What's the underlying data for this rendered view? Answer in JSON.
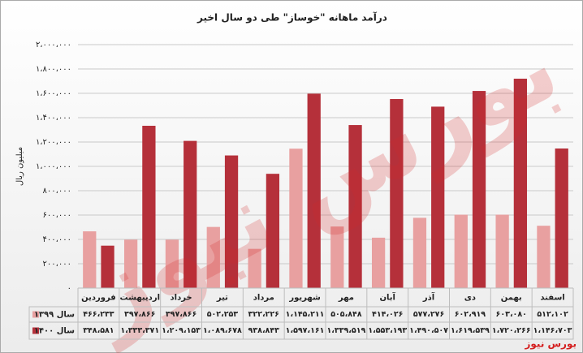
{
  "chart_data": {
    "type": "bar",
    "title": "درآمد ماهانه \"خوساز\" طی دو سال اخیر",
    "y_label": "میلیون ریال",
    "watermark": "بورس نیوز",
    "source": "بورس نیوز",
    "categories": [
      "فروردین",
      "اردیبهشت",
      "خرداد",
      "تیر",
      "مرداد",
      "شهریور",
      "مهر",
      "آبان",
      "آذر",
      "دی",
      "بهمن",
      "اسفند"
    ],
    "series": [
      {
        "name": "سال ۱۳۹۹",
        "color": "#e8a0a0",
        "values": [
          466233,
          397866,
          397866,
          502253,
          322226,
          1145211,
          505848,
          414026,
          577276,
          602919,
          603080,
          512102
        ],
        "value_labels": [
          "۴۶۶،۲۳۳",
          "۳۹۷،۸۶۶",
          "۳۹۷،۸۶۶",
          "۵۰۲،۲۵۳",
          "۳۲۲،۲۲۶",
          "۱،۱۴۵،۲۱۱",
          "۵۰۵،۸۴۸",
          "۴۱۴،۰۲۶",
          "۵۷۷،۲۷۶",
          "۶۰۲،۹۱۹",
          "۶۰۳،۰۸۰",
          "۵۱۲،۱۰۲"
        ]
      },
      {
        "name": "سال ۱۴۰۰",
        "color": "#b5303a",
        "values": [
          348581,
          1333371,
          1209153,
          1089678,
          938843,
          1597161,
          1339519,
          1553193,
          1490507,
          1619539,
          1720266,
          1146703
        ],
        "value_labels": [
          "۳۴۸،۵۸۱",
          "۱،۳۳۳،۳۷۱",
          "۱،۲۰۹،۱۵۳",
          "۱،۰۸۹،۶۷۸",
          "۹۳۸،۸۴۳",
          "۱،۵۹۷،۱۶۱",
          "۱،۳۳۹،۵۱۹",
          "۱،۵۵۳،۱۹۳",
          "۱،۴۹۰،۵۰۷",
          "۱،۶۱۹،۵۳۹",
          "۱،۷۲۰،۲۶۶",
          "۱،۱۴۶،۷۰۳"
        ]
      }
    ],
    "ylim": [
      0,
      2000000
    ],
    "yticks": [
      {
        "value": 0,
        "label": "۰"
      },
      {
        "value": 200000,
        "label": "۲۰۰،۰۰۰"
      },
      {
        "value": 400000,
        "label": "۴۰۰،۰۰۰"
      },
      {
        "value": 600000,
        "label": "۶۰۰،۰۰۰"
      },
      {
        "value": 800000,
        "label": "۸۰۰،۰۰۰"
      },
      {
        "value": 1000000,
        "label": "۱،۰۰۰،۰۰۰"
      },
      {
        "value": 1200000,
        "label": "۱،۲۰۰،۰۰۰"
      },
      {
        "value": 1400000,
        "label": "۱،۴۰۰،۰۰۰"
      },
      {
        "value": 1600000,
        "label": "۱،۶۰۰،۰۰۰"
      },
      {
        "value": 1800000,
        "label": "۱،۸۰۰،۰۰۰"
      },
      {
        "value": 2000000,
        "label": "۲،۰۰۰،۰۰۰"
      }
    ],
    "grid": true
  }
}
